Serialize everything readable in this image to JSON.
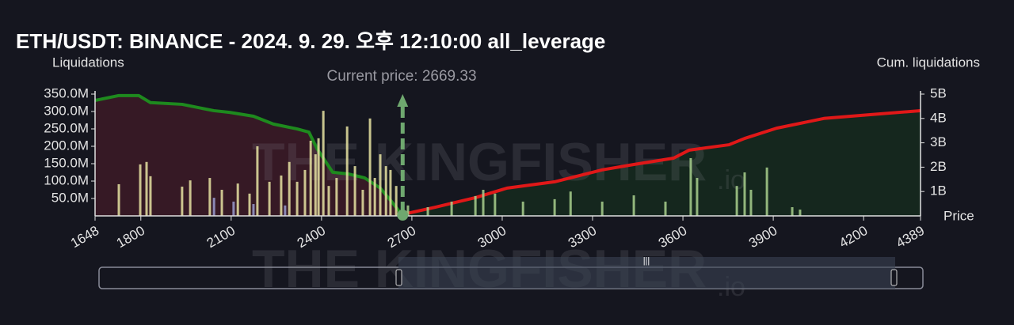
{
  "chart_data": {
    "type": "bar",
    "title": "ETH/USDT: BINANCE - 2024. 9. 29. 오후 12:10:00 all_leverage",
    "y_label": "Liquidations",
    "y2_label": "Cum. liquidations",
    "x_label": "Price",
    "watermark": "THE KINGFISHER",
    "watermark_suffix": ".io",
    "current_price": {
      "value": 2669.33,
      "label": "Current price: 2669.33"
    },
    "xlim": [
      1648,
      4389
    ],
    "xticks": [
      1648,
      1800,
      2100,
      2400,
      2700,
      3000,
      3300,
      3600,
      3900,
      4200,
      4389
    ],
    "ylim": [
      0,
      350000000
    ],
    "yticks": [
      {
        "value": 50000000,
        "label": "50.0M"
      },
      {
        "value": 100000000,
        "label": "100.0M"
      },
      {
        "value": 150000000,
        "label": "150.0M"
      },
      {
        "value": 200000000,
        "label": "200.0M"
      },
      {
        "value": 250000000,
        "label": "250.0M"
      },
      {
        "value": 300000000,
        "label": "300.0M"
      },
      {
        "value": 350000000,
        "label": "350.0M"
      }
    ],
    "y2lim": [
      0,
      5000000000
    ],
    "y2ticks": [
      {
        "value": 1000000000,
        "label": "1B"
      },
      {
        "value": 2000000000,
        "label": "2B"
      },
      {
        "value": 3000000000,
        "label": "3B"
      },
      {
        "value": 4000000000,
        "label": "4B"
      },
      {
        "value": 5000000000,
        "label": "5B"
      }
    ],
    "series": [
      {
        "type": "bar",
        "color": "#e6e3a2",
        "x": [
          1727,
          1798,
          1819,
          1832,
          1937,
          1964,
          2029,
          2069,
          2122,
          2161,
          2187,
          2227,
          2266,
          2293,
          2319,
          2345,
          2364,
          2380,
          2390,
          2406,
          2424,
          2450,
          2485,
          2511,
          2537,
          2561,
          2577,
          2595,
          2614,
          2629,
          2648
        ],
        "values": [
          91000000,
          148000000,
          155000000,
          114000000,
          84000000,
          102000000,
          109000000,
          75000000,
          93000000,
          64000000,
          200000000,
          98000000,
          116000000,
          155000000,
          98000000,
          132000000,
          216000000,
          177000000,
          223000000,
          302000000,
          86000000,
          109000000,
          257000000,
          143000000,
          75000000,
          280000000,
          109000000,
          177000000,
          143000000,
          132000000,
          86000000
        ]
      },
      {
        "type": "bar",
        "color": "#9a9ccf",
        "x": [
          2043,
          2108,
          2174,
          2279
        ],
        "values": [
          52000000,
          41000000,
          34000000,
          30000000
        ]
      },
      {
        "type": "bar",
        "color": "#a8d08d",
        "x": [
          2687,
          2753,
          2832,
          2911,
          2937,
          2976,
          3069,
          3174,
          3227,
          3332,
          3437,
          3542,
          3626,
          3647,
          3779,
          3805,
          3826,
          3879,
          3963,
          3989
        ],
        "values": [
          30000000,
          25000000,
          41000000,
          57000000,
          75000000,
          64000000,
          41000000,
          48000000,
          70000000,
          41000000,
          59000000,
          41000000,
          166000000,
          109000000,
          86000000,
          125000000,
          75000000,
          139000000,
          25000000,
          18000000
        ]
      },
      {
        "type": "line",
        "axis": "y2",
        "color": "#1e8a1e",
        "fill": "#3a1a26",
        "x": [
          1648,
          1727,
          1793,
          1832,
          1937,
          2042,
          2095,
          2174,
          2240,
          2319,
          2358,
          2385,
          2437,
          2490,
          2543,
          2595,
          2635,
          2666
        ],
        "values": [
          4740000000,
          4940000000,
          4940000000,
          4650000000,
          4580000000,
          4320000000,
          4250000000,
          4090000000,
          3770000000,
          3570000000,
          3440000000,
          2760000000,
          1790000000,
          1720000000,
          1560000000,
          1140000000,
          550000000,
          60000000
        ]
      },
      {
        "type": "line",
        "axis": "y2",
        "color": "#e01818",
        "fill": "#15291e",
        "x": [
          2669,
          2779,
          2911,
          3016,
          3174,
          3332,
          3437,
          3569,
          3621,
          3753,
          3805,
          3911,
          4068,
          4226,
          4389
        ],
        "values": [
          60000000,
          360000000,
          750000000,
          1140000000,
          1400000000,
          1890000000,
          2110000000,
          2370000000,
          2700000000,
          2920000000,
          3180000000,
          3600000000,
          4000000000,
          4160000000,
          4320000000
        ]
      }
    ]
  }
}
